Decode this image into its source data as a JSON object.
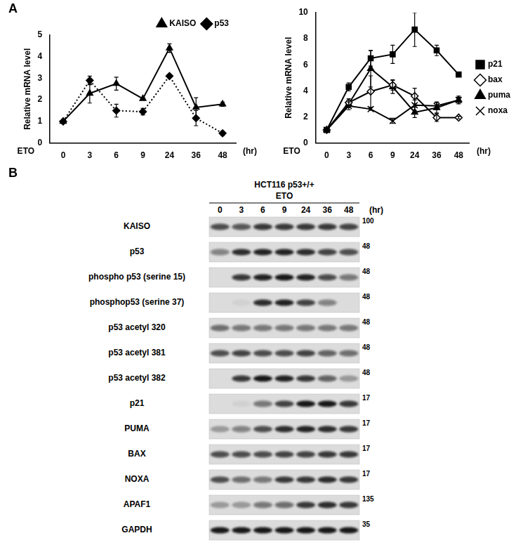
{
  "chart_data": [
    {
      "type": "line",
      "panel": "A",
      "categories": [
        0,
        3,
        6,
        9,
        24,
        36,
        48
      ],
      "x_start_label": "ETO",
      "x_end_label": "(hr)",
      "ylabel": "Relative mRNA level",
      "ylim": [
        0,
        5
      ],
      "yticks": [
        0,
        1,
        2,
        3,
        4,
        5
      ],
      "grid": false,
      "legend": "upper right",
      "series": [
        {
          "name": "KAISO",
          "color": "#000000",
          "marker": "triangle",
          "line_style": "solid",
          "values": [
            1,
            2.3,
            2.75,
            2.05,
            4.4,
            1.65,
            1.8
          ],
          "errors": [
            0.05,
            0.45,
            0.3,
            0.05,
            0.2,
            0.45,
            0.1
          ]
        },
        {
          "name": "p53",
          "color": "#000000",
          "marker": "diamond",
          "line_style": "dotted",
          "values": [
            1,
            2.9,
            1.5,
            1.45,
            3.1,
            1.15,
            0.45
          ],
          "errors": [
            0.05,
            0.2,
            0.3,
            0.15,
            0.05,
            0.35,
            0.1
          ]
        }
      ]
    },
    {
      "type": "line",
      "categories": [
        0,
        3,
        6,
        9,
        24,
        36,
        48
      ],
      "x_start_label": "ETO",
      "x_end_label": "(hr)",
      "ylabel": "Relative mRNA level",
      "ylim": [
        0,
        10
      ],
      "yticks": [
        0,
        2,
        4,
        6,
        8,
        10
      ],
      "grid": false,
      "legend": "right",
      "series": [
        {
          "name": "p21",
          "color": "#000000",
          "marker": "square",
          "line_style": "solid",
          "values": [
            1,
            4.3,
            6.5,
            6.8,
            8.7,
            7.1,
            5.25
          ],
          "errors": [
            0.05,
            0.3,
            0.6,
            0.7,
            1.3,
            0.4,
            0.1
          ]
        },
        {
          "name": "bax",
          "color": "#000000",
          "marker": "open diamond",
          "line_style": "solid",
          "values": [
            1,
            3.1,
            3.95,
            4.45,
            3.6,
            1.95,
            1.95
          ],
          "errors": [
            0,
            0.3,
            1.2,
            0.4,
            0.6,
            0.3,
            0.1
          ]
        },
        {
          "name": "puma",
          "color": "#000000",
          "marker": "triangle",
          "line_style": "solid",
          "values": [
            1,
            3.0,
            5.7,
            4.3,
            2.35,
            2.7,
            3.3
          ],
          "errors": [
            0,
            0.3,
            1.4,
            0.5,
            0.4,
            0.4,
            0.2
          ]
        },
        {
          "name": "noxa",
          "color": "#000000",
          "marker": "cross",
          "line_style": "solid",
          "values": [
            1,
            2.85,
            2.6,
            1.7,
            2.9,
            2.85,
            3.3
          ],
          "errors": [
            0,
            0.3,
            0.1,
            0.2,
            0.4,
            0.3,
            0.3
          ]
        }
      ]
    }
  ],
  "blot": {
    "panel": "B",
    "title": "HCT116 p53+/+",
    "treatment": "ETO",
    "lanes": [
      0,
      3,
      6,
      9,
      24,
      36,
      48
    ],
    "lane_unit": "(hr)",
    "rows": [
      {
        "label": "KAISO",
        "mw": 100,
        "intensities": [
          0.7,
          0.65,
          0.8,
          0.8,
          0.8,
          0.8,
          0.75
        ]
      },
      {
        "label": "p53",
        "mw": 48,
        "intensities": [
          0.45,
          0.85,
          0.9,
          0.9,
          0.85,
          0.75,
          0.7
        ]
      },
      {
        "label": "phospho p53 (serine 15)",
        "mw": 48,
        "intensities": [
          0,
          0.8,
          0.9,
          0.95,
          0.9,
          0.7,
          0.5
        ]
      },
      {
        "label": "phosphop53 (serine 37)",
        "mw": 48,
        "intensities": [
          0,
          0.05,
          0.85,
          0.9,
          0.75,
          0.45,
          0
        ]
      },
      {
        "label": "p53 acetyl 320",
        "mw": 48,
        "intensities": [
          0.55,
          0.5,
          0.5,
          0.5,
          0.5,
          0.5,
          0.5
        ]
      },
      {
        "label": "p53 acetyl 381",
        "mw": 48,
        "intensities": [
          0.7,
          0.75,
          0.7,
          0.7,
          0.75,
          0.6,
          0.55
        ]
      },
      {
        "label": "p53 acetyl 382",
        "mw": 48,
        "intensities": [
          0,
          0.8,
          0.95,
          0.9,
          0.8,
          0.6,
          0.3
        ]
      },
      {
        "label": "p21",
        "mw": 17,
        "intensities": [
          0,
          0.05,
          0.5,
          0.75,
          0.95,
          0.95,
          0.8
        ]
      },
      {
        "label": "PUMA",
        "mw": 17,
        "intensities": [
          0.3,
          0.45,
          0.7,
          0.85,
          0.9,
          0.85,
          0.8
        ]
      },
      {
        "label": "BAX",
        "mw": 17,
        "intensities": [
          0.7,
          0.7,
          0.7,
          0.75,
          0.75,
          0.8,
          0.8
        ]
      },
      {
        "label": "NOXA",
        "mw": 17,
        "intensities": [
          0.7,
          0.55,
          0.5,
          0.8,
          0.8,
          0.85,
          0.8
        ]
      },
      {
        "label": "APAF1",
        "mw": 135,
        "intensities": [
          0.3,
          0.3,
          0.5,
          0.55,
          0.8,
          0.85,
          0.8
        ]
      },
      {
        "label": "GAPDH",
        "mw": 35,
        "intensities": [
          0.95,
          0.95,
          0.95,
          0.95,
          0.95,
          0.95,
          0.95
        ]
      }
    ]
  }
}
